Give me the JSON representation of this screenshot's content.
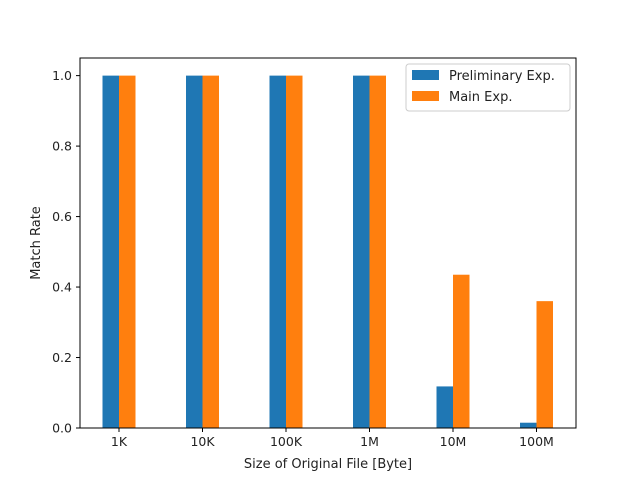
{
  "chart_data": {
    "type": "bar",
    "title": "",
    "xlabel": "Size of Original File [Byte]",
    "ylabel": "Match Rate",
    "categories": [
      "1K",
      "10K",
      "100K",
      "1M",
      "10M",
      "100M"
    ],
    "series": [
      {
        "name": "Preliminary Exp.",
        "color": "#1f77b4",
        "values": [
          1.0,
          1.0,
          1.0,
          1.0,
          0.118,
          0.015
        ]
      },
      {
        "name": "Main Exp.",
        "color": "#ff7f0e",
        "values": [
          1.0,
          1.0,
          1.0,
          1.0,
          0.435,
          0.36
        ]
      }
    ],
    "ylim": [
      0,
      1.05
    ],
    "yticks": [
      "0.0",
      "0.2",
      "0.4",
      "0.6",
      "0.8",
      "1.0"
    ],
    "grid": false,
    "legend_position": "top-right"
  }
}
